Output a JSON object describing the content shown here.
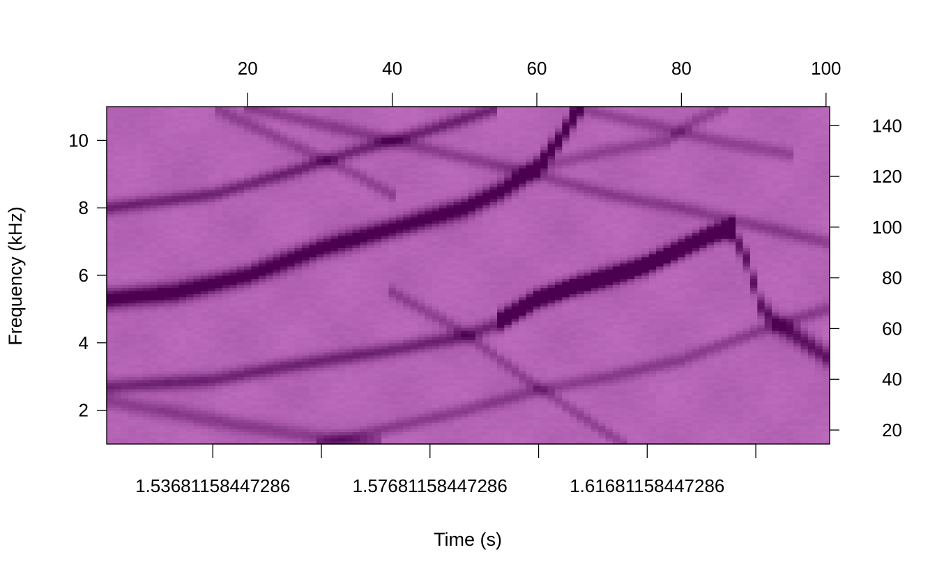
{
  "chart_data": {
    "type": "heatmap",
    "title": "",
    "xlabel": "Time (s)",
    "ylabel": "Frequency (kHz)",
    "x_bottom_ticks": [
      "1.53681158447286",
      "1.57681158447286",
      "1.61681158447286"
    ],
    "x_bottom_tick_values": [
      1.53681158447286,
      1.57681158447286,
      1.61681158447286
    ],
    "x_bottom_unlabeled_tick_values": [
      1.55681158447286,
      1.59681158447286,
      1.63681158447286
    ],
    "xlim_bottom": [
      1.51727,
      1.65041
    ],
    "x_top_ticks": [
      "20",
      "40",
      "60",
      "80",
      "100"
    ],
    "x_top_tick_values": [
      20,
      40,
      60,
      80,
      100
    ],
    "xlim_top": [
      0.5,
      100.5
    ],
    "y_left_ticks": [
      "2",
      "4",
      "6",
      "8",
      "10"
    ],
    "y_left_tick_values": [
      2,
      4,
      6,
      8,
      10
    ],
    "ylim_left": [
      1.0,
      11.0
    ],
    "y_right_ticks": [
      "20",
      "40",
      "60",
      "80",
      "100",
      "120",
      "140"
    ],
    "y_right_tick_values": [
      20,
      40,
      60,
      80,
      100,
      120,
      140
    ],
    "ylim_right": [
      14.5,
      147.5
    ],
    "colormap": {
      "low": "#cc7acc",
      "high": "#4b0050"
    },
    "grid": false,
    "legend": "none",
    "ridges": [
      {
        "strength": 1.0,
        "width": 0.28,
        "points": [
          [
            0.5,
            5.3
          ],
          [
            10,
            5.5
          ],
          [
            20,
            6.0
          ],
          [
            30,
            6.8
          ],
          [
            40,
            7.4
          ],
          [
            50,
            8.0
          ],
          [
            55,
            8.5
          ],
          [
            60,
            9.2
          ],
          [
            63,
            10.0
          ],
          [
            66,
            11.0
          ]
        ]
      },
      {
        "strength": 0.55,
        "width": 0.2,
        "points": [
          [
            0.5,
            8.0
          ],
          [
            15,
            8.4
          ],
          [
            25,
            9.0
          ],
          [
            35,
            9.7
          ],
          [
            45,
            10.3
          ],
          [
            55,
            11.0
          ]
        ]
      },
      {
        "strength": 0.55,
        "width": 0.22,
        "points": [
          [
            0.5,
            2.7
          ],
          [
            15,
            2.9
          ],
          [
            25,
            3.3
          ],
          [
            40,
            3.8
          ],
          [
            50,
            4.2
          ],
          [
            55,
            4.6
          ],
          [
            60,
            5.3
          ],
          [
            70,
            5.9
          ],
          [
            75,
            6.3
          ],
          [
            80,
            6.8
          ],
          [
            84,
            7.2
          ],
          [
            87,
            7.4
          ]
        ]
      },
      {
        "strength": 1.0,
        "width": 0.26,
        "points": [
          [
            55,
            4.7
          ],
          [
            60,
            5.3
          ],
          [
            65,
            5.7
          ],
          [
            70,
            6.0
          ],
          [
            75,
            6.3
          ],
          [
            80,
            6.8
          ],
          [
            84,
            7.2
          ],
          [
            87,
            7.4
          ]
        ]
      },
      {
        "strength": 0.7,
        "width": 0.3,
        "points": [
          [
            87,
            7.3
          ],
          [
            89,
            6.5
          ],
          [
            90,
            5.8
          ],
          [
            91,
            5.1
          ],
          [
            93,
            4.6
          ],
          [
            96,
            4.2
          ],
          [
            100,
            3.6
          ]
        ]
      },
      {
        "strength": 0.35,
        "width": 0.24,
        "points": [
          [
            0.5,
            2.3
          ],
          [
            8,
            2.0
          ],
          [
            18,
            1.6
          ],
          [
            30,
            1.2
          ],
          [
            38,
            1.0
          ]
        ]
      },
      {
        "strength": 0.35,
        "width": 0.2,
        "points": [
          [
            30,
            1.0
          ],
          [
            40,
            1.5
          ],
          [
            50,
            2.0
          ],
          [
            60,
            2.6
          ],
          [
            70,
            3.0
          ],
          [
            80,
            3.5
          ],
          [
            90,
            4.3
          ],
          [
            100,
            5.0
          ]
        ]
      },
      {
        "strength": 0.35,
        "width": 0.2,
        "points": [
          [
            20,
            11.0
          ],
          [
            30,
            10.5
          ],
          [
            40,
            10.0
          ],
          [
            50,
            9.5
          ],
          [
            60,
            9.0
          ],
          [
            70,
            8.4
          ],
          [
            80,
            8.0
          ],
          [
            90,
            7.5
          ],
          [
            100,
            7.0
          ]
        ]
      },
      {
        "strength": 0.3,
        "width": 0.2,
        "points": [
          [
            15,
            11.0
          ],
          [
            25,
            10.0
          ],
          [
            35,
            9.0
          ],
          [
            40,
            8.4
          ]
        ]
      },
      {
        "strength": 0.3,
        "width": 0.2,
        "points": [
          [
            60,
            9.2
          ],
          [
            70,
            9.7
          ],
          [
            78,
            10.0
          ],
          [
            82,
            10.6
          ],
          [
            86,
            11.0
          ]
        ]
      },
      {
        "strength": 0.3,
        "width": 0.2,
        "points": [
          [
            40,
            5.5
          ],
          [
            50,
            4.3
          ],
          [
            58,
            3.0
          ],
          [
            65,
            2.0
          ],
          [
            72,
            1.0
          ]
        ]
      },
      {
        "strength": 0.3,
        "width": 0.2,
        "points": [
          [
            65,
            11.0
          ],
          [
            75,
            10.5
          ],
          [
            85,
            10.0
          ],
          [
            95,
            9.6
          ]
        ]
      }
    ]
  }
}
